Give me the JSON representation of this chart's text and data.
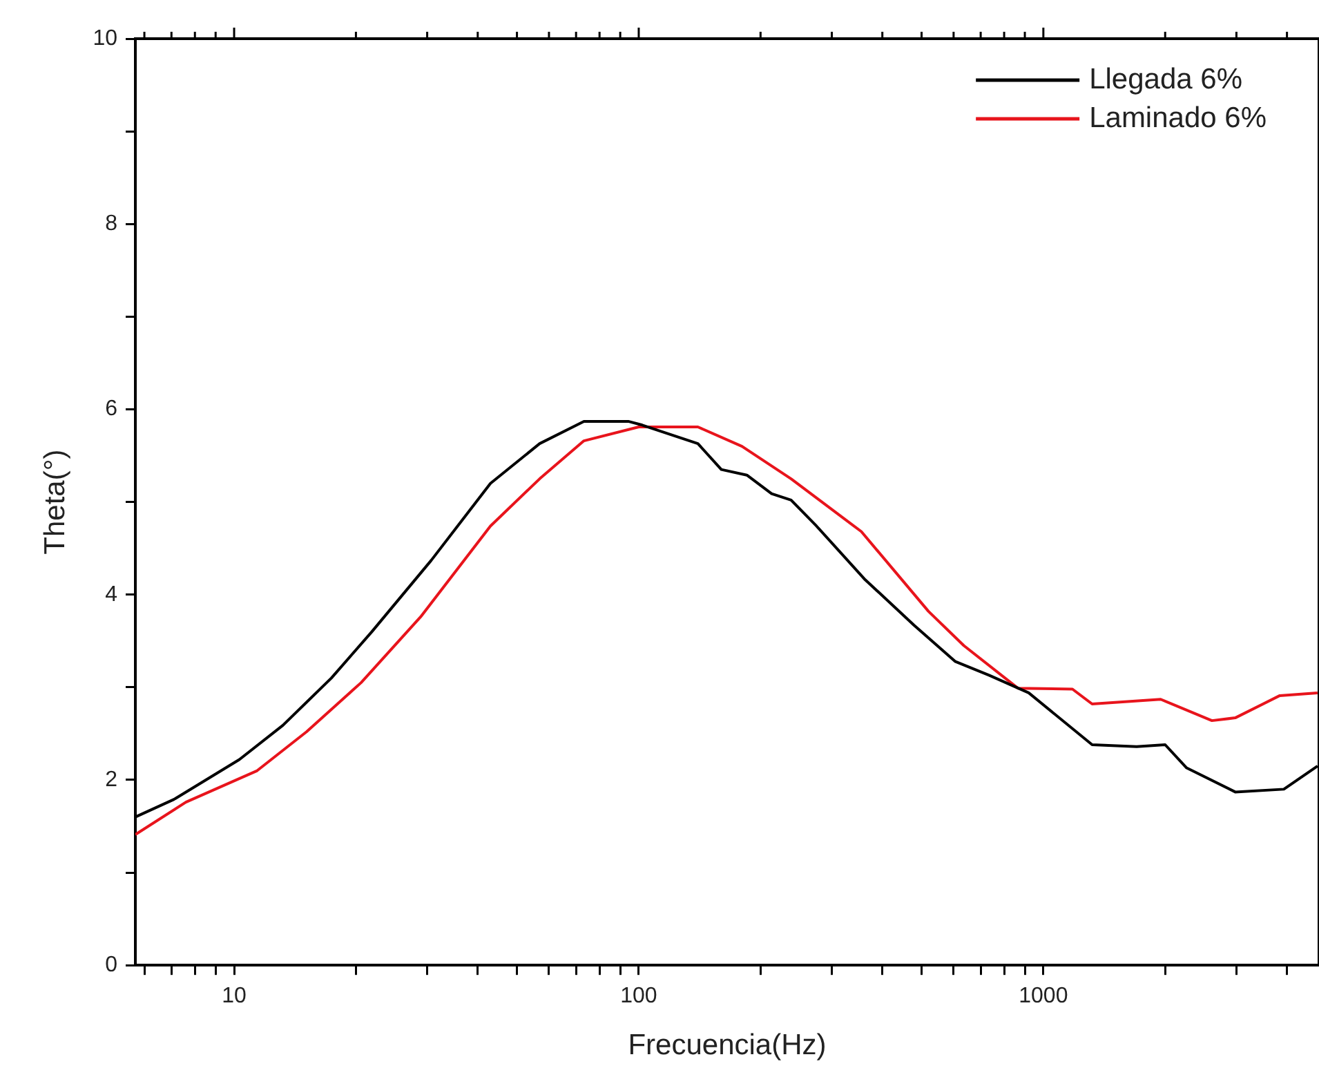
{
  "chart_data": {
    "type": "line",
    "xlabel": "Frecuencia(Hz)",
    "ylabel": "Theta(°)",
    "log": "x",
    "xlim": [
      5.7,
      4800
    ],
    "ylim": [
      0,
      10
    ],
    "xticks": [
      {
        "value": 6,
        "label": null
      },
      {
        "value": 7,
        "label": null
      },
      {
        "value": 8,
        "label": null
      },
      {
        "value": 9,
        "label": null
      },
      10,
      {
        "value": 20,
        "label": null
      },
      {
        "value": 30,
        "label": null
      },
      {
        "value": 40,
        "label": null
      },
      {
        "value": 50,
        "label": null
      },
      {
        "value": 60,
        "label": null
      },
      {
        "value": 70,
        "label": null
      },
      {
        "value": 80,
        "label": null
      },
      {
        "value": 90,
        "label": null
      },
      100,
      {
        "value": 200,
        "label": null
      },
      {
        "value": 300,
        "label": null
      },
      {
        "value": 400,
        "label": null
      },
      {
        "value": 500,
        "label": null
      },
      {
        "value": 600,
        "label": null
      },
      {
        "value": 700,
        "label": null
      },
      {
        "value": 800,
        "label": null
      },
      {
        "value": 900,
        "label": null
      },
      1000,
      {
        "value": 2000,
        "label": null
      },
      {
        "value": 3000,
        "label": null
      },
      {
        "value": 4000,
        "label": null
      }
    ],
    "yticks": [
      0,
      {
        "value": 1,
        "label": null
      },
      2,
      {
        "value": 3,
        "label": null
      },
      4,
      {
        "value": 5,
        "label": null
      },
      6,
      {
        "value": 7,
        "label": null
      },
      8,
      {
        "value": 9,
        "label": null
      },
      10
    ],
    "grid": false,
    "legend": "top right",
    "marker": "none",
    "line_style": "solid",
    "series": [
      {
        "name": "Llegada 6%",
        "color": "#000000",
        "x": [
          5.7,
          7.1,
          10.3,
          13.2,
          17.4,
          21.9,
          30.7,
          43,
          56.9,
          73.2,
          94.2,
          102,
          140,
          160,
          185,
          213,
          238,
          275,
          361,
          479,
          605,
          734,
          920,
          1320,
          1700,
          2000,
          2260,
          2980,
          3930,
          4760
        ],
        "values": [
          1.6,
          1.79,
          2.22,
          2.59,
          3.1,
          3.6,
          4.37,
          5.2,
          5.63,
          5.87,
          5.87,
          5.83,
          5.63,
          5.35,
          5.29,
          5.09,
          5.02,
          4.74,
          4.17,
          3.67,
          3.28,
          3.13,
          2.94,
          2.38,
          2.36,
          2.38,
          2.13,
          1.87,
          1.9,
          2.15
        ]
      },
      {
        "name": "Laminado 6%",
        "color": "#e8141c",
        "x": [
          5.7,
          7.6,
          11.4,
          15.1,
          20.6,
          28.9,
          43,
          56.9,
          73.2,
          100,
          140,
          180,
          238,
          355,
          520,
          636,
          865,
          1180,
          1320,
          1950,
          2610,
          2980,
          3840,
          4760
        ],
        "values": [
          1.41,
          1.76,
          2.1,
          2.52,
          3.05,
          3.76,
          4.74,
          5.25,
          5.66,
          5.81,
          5.81,
          5.6,
          5.25,
          4.68,
          3.82,
          3.45,
          2.99,
          2.98,
          2.82,
          2.87,
          2.64,
          2.67,
          2.91,
          2.94
        ]
      }
    ]
  }
}
